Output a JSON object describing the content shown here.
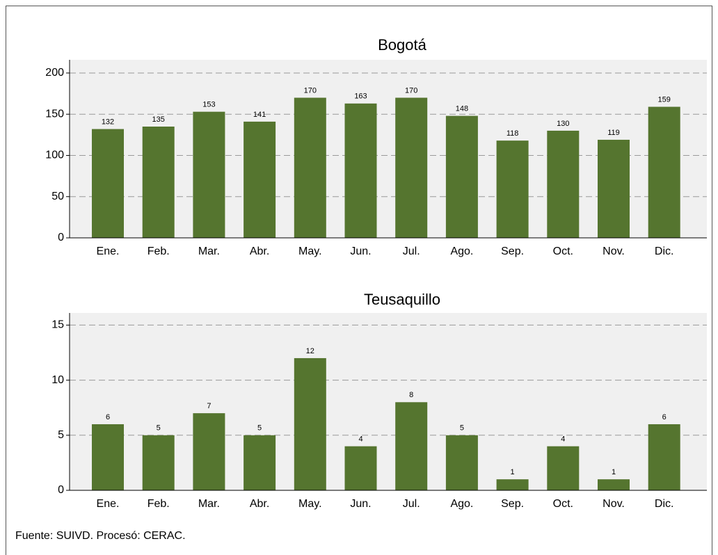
{
  "chart_data": [
    {
      "type": "bar",
      "title": "Bogotá",
      "categories": [
        "Ene.",
        "Feb.",
        "Mar.",
        "Abr.",
        "May.",
        "Jun.",
        "Jul.",
        "Ago.",
        "Sep.",
        "Oct.",
        "Nov.",
        "Dic."
      ],
      "values": [
        132,
        135,
        153,
        141,
        170,
        163,
        170,
        148,
        118,
        130,
        119,
        159
      ],
      "color": "#55752f",
      "ylim": [
        0,
        216
      ],
      "yticks": [
        0,
        50,
        100,
        150,
        200
      ],
      "grid": true
    },
    {
      "type": "bar",
      "title": "Teusaquillo",
      "categories": [
        "Ene.",
        "Feb.",
        "Mar.",
        "Abr.",
        "May.",
        "Jun.",
        "Jul.",
        "Ago.",
        "Sep.",
        "Oct.",
        "Nov.",
        "Dic."
      ],
      "values": [
        6,
        5,
        7,
        5,
        12,
        4,
        8,
        5,
        1,
        4,
        1,
        6
      ],
      "color": "#55752f",
      "ylim": [
        0,
        16.1
      ],
      "yticks": [
        0,
        5,
        10,
        15
      ],
      "grid": true
    }
  ],
  "source": "Fuente: SUIVD. Procesó: CERAC."
}
